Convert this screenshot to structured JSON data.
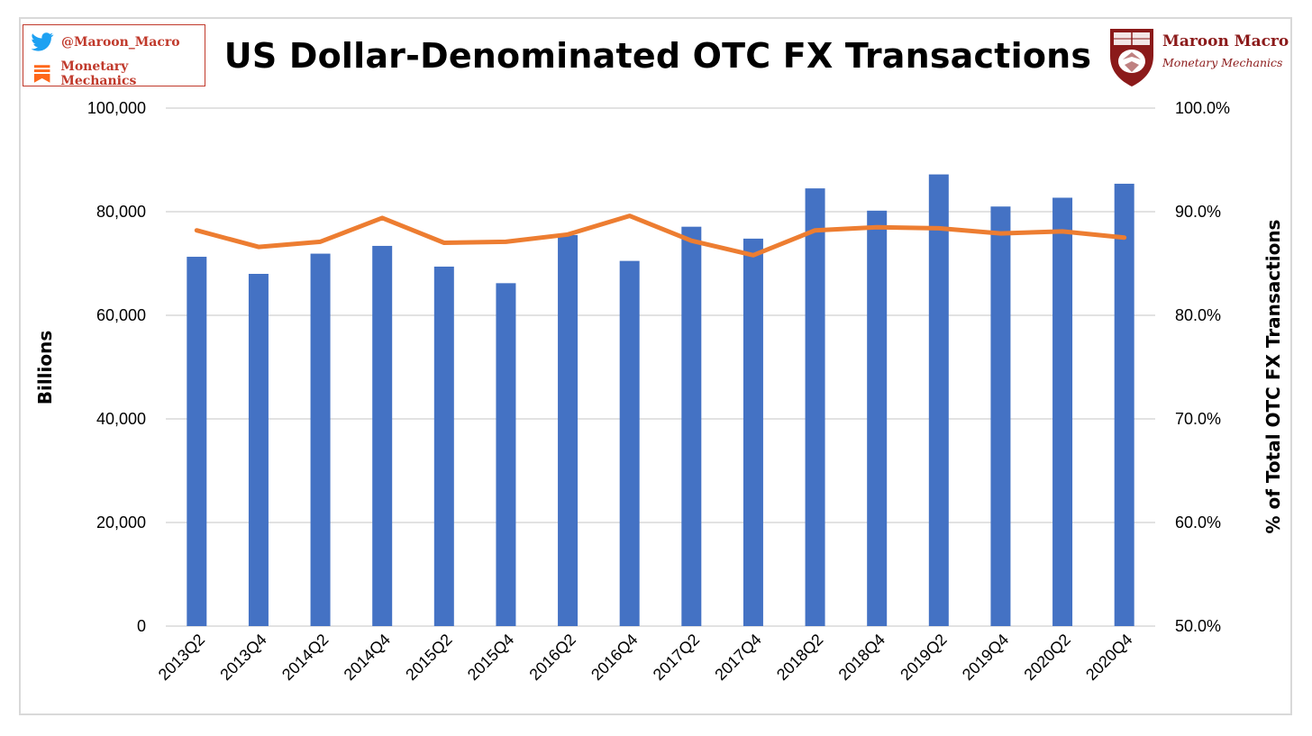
{
  "branding": {
    "twitter_handle": "@Maroon_Macro",
    "newsletter": "Monetary Mechanics",
    "logo_name": "Maroon Macro",
    "logo_subtitle": "Monetary Mechanics",
    "accent_color": "#c0392b",
    "logo_color": "#8b1a1a",
    "twitter_color": "#1da1f2",
    "substack_color": "#ff6719"
  },
  "chart_data": {
    "type": "bar",
    "title": "US Dollar-Denominated OTC FX Transactions",
    "xlabel": "",
    "ylabel": "Billions",
    "y2label": "% of Total OTC FX Transactions",
    "ylim": [
      0,
      100000
    ],
    "y2lim": [
      50.0,
      100.0
    ],
    "yticks": [
      "0",
      "20,000",
      "40,000",
      "60,000",
      "80,000",
      "100,000"
    ],
    "y2ticks": [
      "50.0%",
      "60.0%",
      "70.0%",
      "80.0%",
      "90.0%",
      "100.0%"
    ],
    "grid": true,
    "legend": "none",
    "categories": [
      "2013Q2",
      "2013Q4",
      "2014Q2",
      "2014Q4",
      "2015Q2",
      "2015Q4",
      "2016Q2",
      "2016Q4",
      "2017Q2",
      "2017Q4",
      "2018Q2",
      "2018Q4",
      "2019Q2",
      "2019Q4",
      "2020Q2",
      "2020Q4"
    ],
    "series": [
      {
        "type": "bar",
        "axis": "left",
        "color": "#4472c4",
        "values": [
          71300,
          68000,
          71900,
          73400,
          69400,
          66200,
          75500,
          70500,
          77100,
          74800,
          84500,
          80200,
          87200,
          81000,
          82700,
          85400
        ]
      },
      {
        "type": "line",
        "axis": "right",
        "color": "#ed7d31",
        "values": [
          88.2,
          86.6,
          87.1,
          89.4,
          87.0,
          87.1,
          87.8,
          89.6,
          87.2,
          85.8,
          88.2,
          88.5,
          88.4,
          87.9,
          88.1,
          87.5
        ]
      }
    ]
  }
}
